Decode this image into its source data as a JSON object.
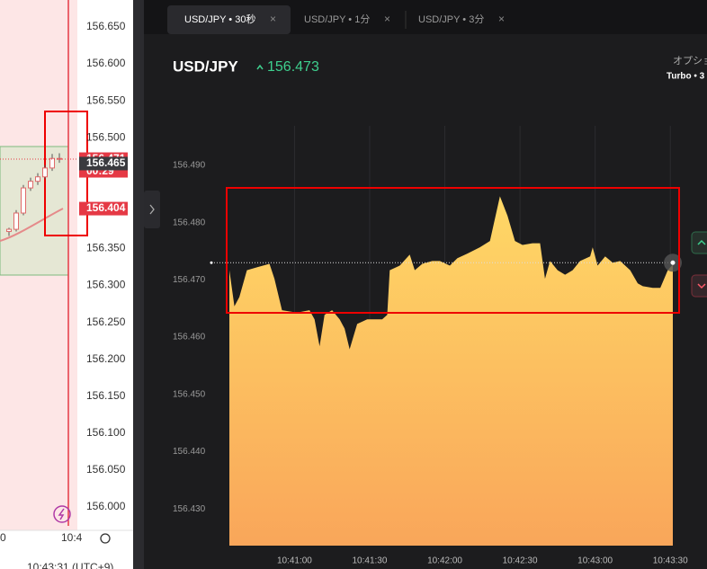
{
  "chart_data": [
    {
      "type": "candlestick",
      "ylim": [
        155.9683,
        156.6865
      ],
      "yticks": [
        {
          "value": 156.65,
          "label": "156.650"
        },
        {
          "value": 156.6,
          "label": "156.600"
        },
        {
          "value": 156.55,
          "label": "156.550"
        },
        {
          "value": 156.5,
          "label": "156.500"
        },
        {
          "value": 156.45,
          "label": "156.450"
        },
        {
          "value": 156.4,
          "label": "156.400"
        },
        {
          "value": 156.35,
          "label": "156.350"
        },
        {
          "value": 156.3,
          "label": "156.300"
        },
        {
          "value": 156.25,
          "label": "156.250"
        },
        {
          "value": 156.2,
          "label": "156.200"
        },
        {
          "value": 156.15,
          "label": "156.150"
        },
        {
          "value": 156.1,
          "label": "156.100"
        },
        {
          "value": 156.05,
          "label": "156.050"
        },
        {
          "value": 156,
          "label": "156.000"
        }
      ],
      "candles": [
        {
          "open": 156.373,
          "high": 156.378,
          "low": 156.367,
          "close": 156.376
        },
        {
          "open": 156.376,
          "high": 156.402,
          "low": 156.373,
          "close": 156.398
        },
        {
          "open": 156.398,
          "high": 156.436,
          "low": 156.395,
          "close": 156.432
        },
        {
          "open": 156.432,
          "high": 156.446,
          "low": 156.428,
          "close": 156.441
        },
        {
          "open": 156.441,
          "high": 156.452,
          "low": 156.436,
          "close": 156.447
        },
        {
          "open": 156.447,
          "high": 156.463,
          "low": 156.444,
          "close": 156.459
        },
        {
          "open": 156.459,
          "high": 156.478,
          "low": 156.455,
          "close": 156.472
        },
        {
          "open": 156.472,
          "high": 156.479,
          "low": 156.466,
          "close": 156.471
        }
      ],
      "tags": [
        {
          "value": 156.471,
          "label": "156.471",
          "color": "#e53945"
        },
        {
          "value": 156.465,
          "label": "156.465",
          "color": "#3a3a3e"
        },
        {
          "value": 156.404,
          "label": "156.404",
          "color": "#e53945"
        }
      ],
      "countdown": "00:29",
      "x_labels": [
        "0",
        "10:4"
      ],
      "footer": "10:43:31 (UTC+9)"
    },
    {
      "type": "area",
      "colors": [
        "#ffd866",
        "#f9a65a"
      ],
      "grid": true,
      "xlim": [
        "10:40:34",
        "10:43:31"
      ],
      "ylim": [
        156.4236,
        156.4969
      ],
      "xticks": [
        "10:41:00",
        "10:41:30",
        "10:42:00",
        "10:42:30",
        "10:43:00",
        "10:43:30"
      ],
      "yticks": [
        {
          "value": 156.49,
          "label": "156.490"
        },
        {
          "value": 156.48,
          "label": "156.480"
        },
        {
          "value": 156.47,
          "label": "156.470"
        },
        {
          "value": 156.46,
          "label": "156.460"
        },
        {
          "value": 156.45,
          "label": "156.450"
        },
        {
          "value": 156.44,
          "label": "156.440"
        },
        {
          "value": 156.43,
          "label": "156.430"
        }
      ],
      "x": [
        "10:40:34",
        "10:40:36",
        "10:40:38",
        "10:40:41",
        "10:40:45",
        "10:40:50",
        "10:40:52",
        "10:40:55",
        "10:41:01",
        "10:41:06",
        "10:41:08",
        "10:41:10",
        "10:41:12",
        "10:41:15",
        "10:41:18",
        "10:41:20",
        "10:41:22",
        "10:41:25",
        "10:41:29",
        "10:41:35",
        "10:41:37",
        "10:41:38",
        "10:41:42",
        "10:41:46",
        "10:41:48",
        "10:41:51",
        "10:41:55",
        "10:41:58",
        "10:42:02",
        "10:42:05",
        "10:42:09",
        "10:42:14",
        "10:42:18",
        "10:42:22",
        "10:42:25",
        "10:42:28",
        "10:42:31",
        "10:42:35",
        "10:42:38",
        "10:42:40",
        "10:42:42",
        "10:42:45",
        "10:42:48",
        "10:42:51",
        "10:42:54",
        "10:42:58",
        "10:42:59",
        "10:43:01",
        "10:43:04",
        "10:43:07",
        "10:43:10",
        "10:43:14",
        "10:43:17",
        "10:43:19",
        "10:43:23",
        "10:43:26",
        "10:43:29",
        "10:43:31"
      ],
      "values": [
        156.4717,
        156.4654,
        156.467,
        156.4717,
        156.4722,
        156.4728,
        156.4702,
        156.4647,
        156.4643,
        156.4647,
        156.4631,
        156.4584,
        156.4639,
        156.4647,
        156.4631,
        156.4615,
        156.4579,
        156.4623,
        156.4631,
        156.4631,
        156.4639,
        156.4717,
        156.4725,
        156.4744,
        156.4717,
        156.4728,
        156.4733,
        156.4733,
        156.4725,
        156.4738,
        156.4746,
        156.4757,
        156.4768,
        156.4846,
        156.4812,
        156.4768,
        156.4761,
        156.4764,
        156.4764,
        156.4702,
        156.4733,
        156.4717,
        156.4709,
        156.4717,
        156.4733,
        156.4741,
        156.4757,
        156.4725,
        156.4741,
        156.473,
        156.4733,
        156.4717,
        156.4694,
        156.4689,
        156.4686,
        156.4686,
        156.4717,
        156.4727
      ]
    }
  ],
  "tabs": [
    "USD/JPY • 30秒",
    "USD/JPY • 1分",
    "USD/JPY • 3分"
  ],
  "header": {
    "symbol": "USD/JPY",
    "price": 156.473
  },
  "option": {
    "label": "オプショ",
    "mode": "Turbo • 3"
  }
}
